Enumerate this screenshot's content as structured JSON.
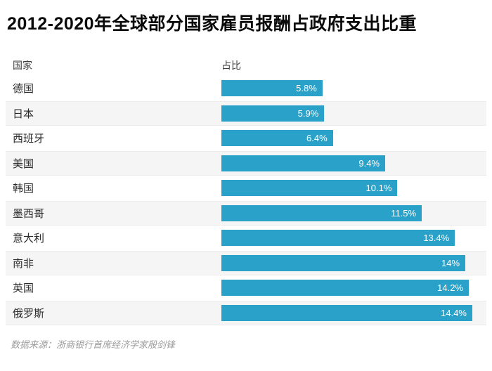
{
  "title": "2012-2020年全球部分国家雇员报酬占政府支出比重",
  "columns": {
    "country": "国家",
    "share": "占比"
  },
  "source": "数据来源：浙商银行首席经济学家殷剑锋",
  "colors": {
    "bar": "#2aa1c8",
    "row_alt_background": "#f5f5f6",
    "row_alt_border": "#ececec",
    "title_text": "#0a0a0a",
    "value_text": "#ffffff",
    "source_text": "#9b9b9b"
  },
  "chart_data": {
    "type": "bar",
    "orientation": "horizontal",
    "title": "2012-2020年全球部分国家雇员报酬占政府支出比重",
    "xlabel": "占比",
    "ylabel": "国家",
    "categories": [
      "德国",
      "日本",
      "西班牙",
      "美国",
      "韩国",
      "墨西哥",
      "意大利",
      "南非",
      "英国",
      "俄罗斯"
    ],
    "values": [
      5.8,
      5.9,
      6.4,
      9.4,
      10.1,
      11.5,
      13.4,
      14,
      14.2,
      14.4
    ],
    "value_labels": [
      "5.8%",
      "5.9%",
      "6.4%",
      "9.4%",
      "10.1%",
      "11.5%",
      "13.4%",
      "14%",
      "14.2%",
      "14.4%"
    ],
    "xlim": [
      0,
      14.4
    ],
    "grid": false,
    "legend": false,
    "annotation": "数据来源：浙商银行首席经济学家殷剑锋"
  }
}
